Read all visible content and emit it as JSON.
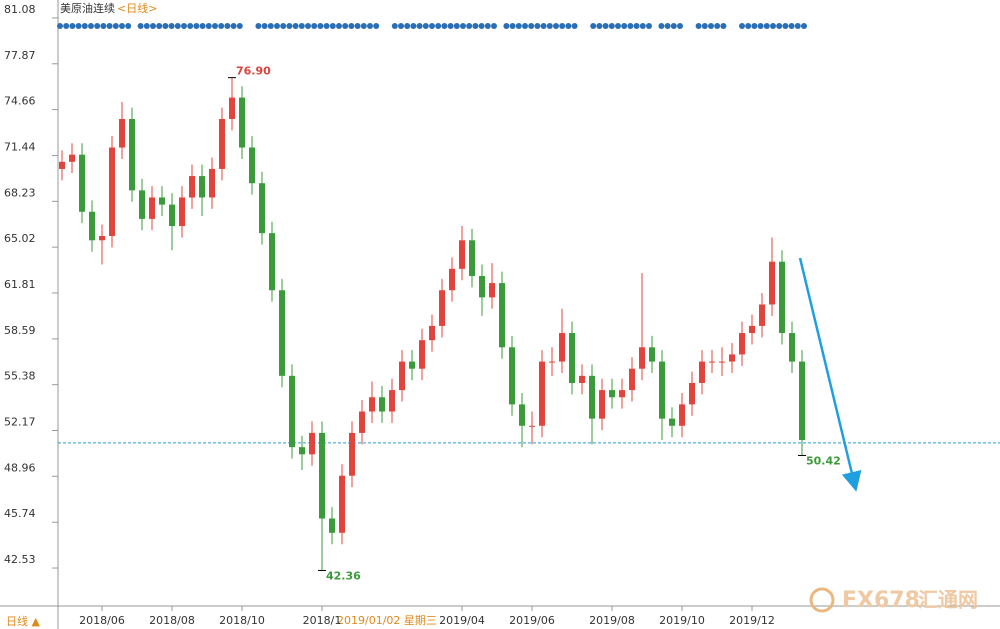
{
  "chart_data": {
    "type": "candlestick",
    "title": "美原油连续",
    "period": "<日线>",
    "period_button": "日线 ▲",
    "cursor_label": "2019/01/02 星期三",
    "watermark": [
      "FX678",
      "汇通网"
    ],
    "up_color": "#e0443c",
    "down_color": "#3b9b3b",
    "ylim": [
      39.94,
      81.99
    ],
    "yticks": [
      42.53,
      45.74,
      48.96,
      52.17,
      55.38,
      58.59,
      61.81,
      65.02,
      68.23,
      71.44,
      74.66,
      77.87,
      81.08
    ],
    "reference_line": 51.3,
    "categories": [
      null,
      null,
      null,
      null,
      "2018/06",
      null,
      null,
      null,
      null,
      null,
      null,
      "2018/08",
      null,
      null,
      null,
      null,
      null,
      null,
      "2018/10",
      null,
      null,
      null,
      null,
      null,
      null,
      null,
      "2018/1",
      null,
      null,
      null,
      null,
      null,
      null,
      null,
      null,
      null,
      null,
      null,
      null,
      null,
      "2019/04",
      null,
      null,
      null,
      null,
      null,
      null,
      "2019/06",
      null,
      null,
      null,
      null,
      null,
      null,
      null,
      "2019/08",
      null,
      null,
      null,
      null,
      null,
      null,
      "2019/10",
      null,
      null,
      null,
      null,
      null,
      null,
      "2019/12",
      null,
      null,
      null,
      null,
      null
    ],
    "series": [
      {
        "open": [
          70.5,
          71,
          71.5,
          67.5,
          65.5,
          65.8,
          72,
          74,
          69,
          67,
          68.5,
          68,
          66.5,
          68.5,
          70,
          68.5,
          70.5,
          74,
          75.5,
          72,
          69.5,
          66,
          62,
          56,
          51,
          50.5,
          52,
          46,
          45,
          49,
          52,
          53.5,
          54.5,
          53.5,
          55,
          57,
          56.5,
          58.5,
          59.5,
          62,
          63.5,
          65.5,
          63,
          61.5,
          62.5,
          58,
          54,
          52.5,
          52.5,
          57,
          57,
          59,
          55.5,
          56,
          53,
          55,
          54.5,
          55,
          56.5,
          58,
          57,
          53,
          52.5,
          54,
          55.5,
          57,
          57,
          57,
          57.5,
          59,
          59.5,
          61,
          64,
          59,
          57
        ],
        "high": [
          71.8,
          72.3,
          72.3,
          68.3,
          66.6,
          72.8,
          75.2,
          74.8,
          69.8,
          69.3,
          69.3,
          68.8,
          69.3,
          70.8,
          70.8,
          71.3,
          74.8,
          76.9,
          76.3,
          72.8,
          70.3,
          66.8,
          62.8,
          56.8,
          51.8,
          52.8,
          52.8,
          46.8,
          49.8,
          52.8,
          54.3,
          55.6,
          55.3,
          55.8,
          57.8,
          57.8,
          59.3,
          60.3,
          62.8,
          64.3,
          66.5,
          66.3,
          63.8,
          63.9,
          63.3,
          58.8,
          54.8,
          53.5,
          57.8,
          58,
          60.7,
          59.8,
          56.8,
          56.8,
          55.8,
          55.8,
          55.8,
          57.3,
          63.2,
          58.8,
          57.8,
          53.8,
          54.8,
          56.3,
          57.8,
          57.8,
          58,
          58.3,
          59.8,
          60.3,
          61.8,
          65.7,
          64.8,
          59.8,
          57.8
        ],
        "low": [
          69.7,
          70.2,
          66.7,
          64.7,
          63.8,
          65,
          71.2,
          68.2,
          66.2,
          66.2,
          67.2,
          64.8,
          65.7,
          67.7,
          67.2,
          67.7,
          69.7,
          73.2,
          71.2,
          68.7,
          65.2,
          61.2,
          55.2,
          50.2,
          49.4,
          49.7,
          42.36,
          44.2,
          44.2,
          48.2,
          51.2,
          52.7,
          52.7,
          52.7,
          54.2,
          55.7,
          55.7,
          57.7,
          58.7,
          61.2,
          62.7,
          62.2,
          60.2,
          60.7,
          57.2,
          53.2,
          51,
          51.2,
          51.7,
          56,
          56.2,
          54.7,
          54.7,
          51.2,
          52.2,
          53.7,
          53.7,
          54.2,
          55.7,
          56.2,
          51.5,
          51.7,
          51.7,
          53.2,
          54.7,
          56.2,
          56,
          56.2,
          56.7,
          58.2,
          58.7,
          60.2,
          58.2,
          56.2,
          50.42
        ],
        "close": [
          71,
          71.5,
          67.5,
          65.5,
          65.8,
          72,
          74,
          69,
          67,
          68.5,
          68,
          66.5,
          68.5,
          70,
          68.5,
          70.5,
          74,
          75.5,
          72,
          69.5,
          66,
          62,
          56,
          51,
          50.5,
          52,
          46,
          45,
          49,
          52,
          53.5,
          54.5,
          53.5,
          55,
          57,
          56.5,
          58.5,
          59.5,
          62,
          63.5,
          65.5,
          63,
          61.5,
          62.5,
          58,
          54,
          52.5,
          52.5,
          57,
          57,
          59,
          55.5,
          56,
          53,
          55,
          54.5,
          55,
          56.5,
          58,
          57,
          53,
          52.5,
          54,
          55.5,
          57,
          57,
          57,
          57.5,
          59,
          59.5,
          61,
          64,
          59,
          57,
          51.5
        ]
      }
    ],
    "annotations": [
      {
        "label": "76.90",
        "value": 76.9,
        "color": "#d9443c"
      },
      {
        "label": "42.36",
        "value": 42.36,
        "color": "#3b9b3b"
      },
      {
        "label": "50.42",
        "value": 50.42,
        "color": "#3b9b3b"
      }
    ]
  }
}
